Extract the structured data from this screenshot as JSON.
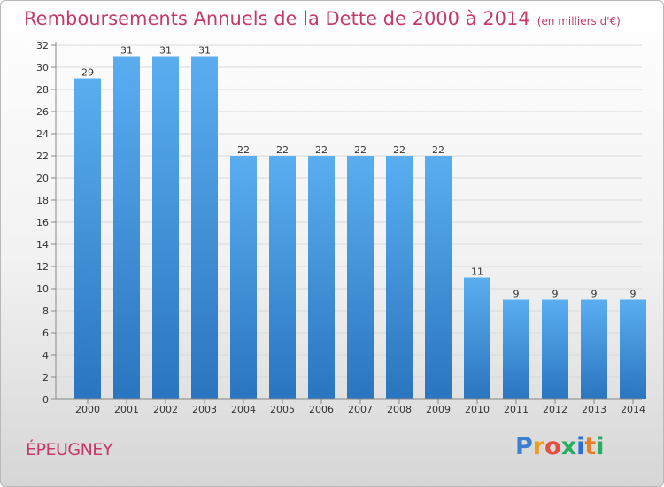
{
  "chart_data": {
    "type": "bar",
    "title": "Remboursements Annuels de la Dette de 2000 à 2014",
    "subtitle": "(en milliers d'€)",
    "categories": [
      "2000",
      "2001",
      "2002",
      "2003",
      "2004",
      "2005",
      "2006",
      "2007",
      "2008",
      "2009",
      "2010",
      "2011",
      "2012",
      "2013",
      "2014"
    ],
    "values": [
      29,
      31,
      31,
      31,
      22,
      22,
      22,
      22,
      22,
      22,
      11,
      9,
      9,
      9,
      9
    ],
    "ylim": [
      0,
      32
    ],
    "yticks": [
      0,
      2,
      4,
      6,
      8,
      10,
      12,
      14,
      16,
      18,
      20,
      22,
      24,
      26,
      28,
      30,
      32
    ],
    "grid": true,
    "legend": "none",
    "bar_color": "#3d8fd8",
    "title_color": "#c53a6b"
  },
  "commune": "ÉPEUGNEY",
  "logo": {
    "letters": [
      "P",
      "r",
      "o",
      "x",
      "i",
      "t",
      "i"
    ],
    "colors": [
      "#3a7fd0",
      "#f39c12",
      "#e74c3c",
      "#27ae60",
      "#2c6fd6",
      "#e67e22",
      "#27ae60"
    ]
  }
}
